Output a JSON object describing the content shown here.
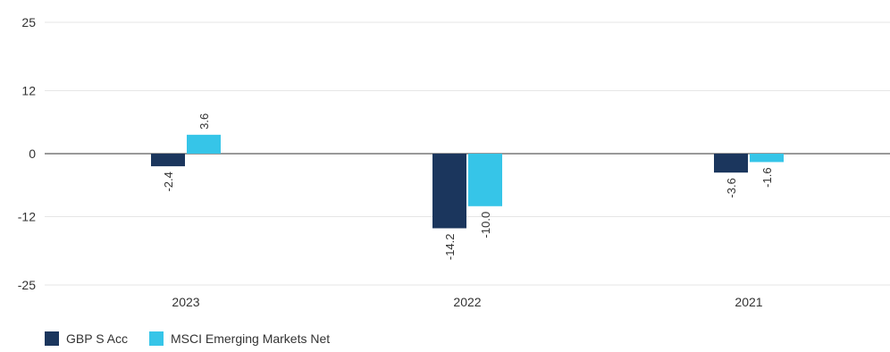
{
  "chart_data": {
    "type": "bar",
    "categories": [
      "2023",
      "2022",
      "2021"
    ],
    "series": [
      {
        "name": "GBP S Acc",
        "values": [
          -2.4,
          -14.2,
          -3.6
        ],
        "labels": [
          "-2.4",
          "-14.2",
          "-3.6"
        ],
        "color": "#1b365d"
      },
      {
        "name": "MSCI Emerging Markets Net",
        "values": [
          3.6,
          -10.0,
          -1.6
        ],
        "labels": [
          "3.6",
          "-10.0",
          "-1.6"
        ],
        "color": "#36c5e8"
      }
    ],
    "yticks": [
      "25",
      "12",
      "0",
      "-12",
      "-25"
    ],
    "ylim": [
      -25,
      25
    ],
    "grid": true,
    "legend_position": "bottom-left"
  }
}
